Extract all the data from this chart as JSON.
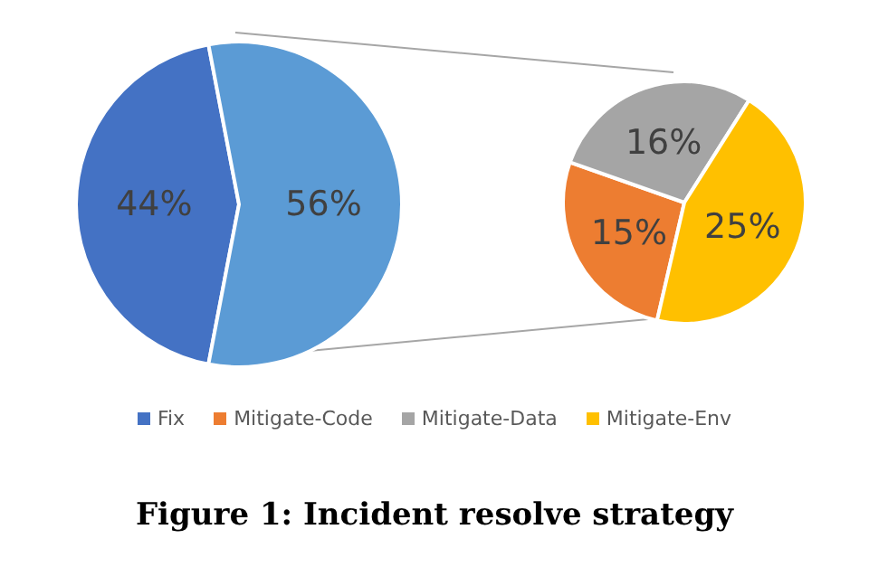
{
  "chart_data": [
    {
      "type": "pie",
      "title": "Figure 1: Incident resolve strategy",
      "categories": [
        "Fix",
        null
      ],
      "values": [
        44,
        56
      ],
      "colors": [
        "#4472c4",
        "#5b9bd5"
      ],
      "value_labels": [
        "44%",
        "56%"
      ],
      "legend": "bottom"
    },
    {
      "type": "pie",
      "categories": [
        "Mitigate-Code",
        "Mitigate-Data",
        "Mitigate-Env"
      ],
      "values": [
        15,
        16,
        25
      ],
      "colors": [
        "#ed7d31",
        "#a5a5a5",
        "#ffc000"
      ],
      "value_labels": [
        "15%",
        "16%",
        "25%"
      ],
      "legend": "bottom"
    }
  ]
}
